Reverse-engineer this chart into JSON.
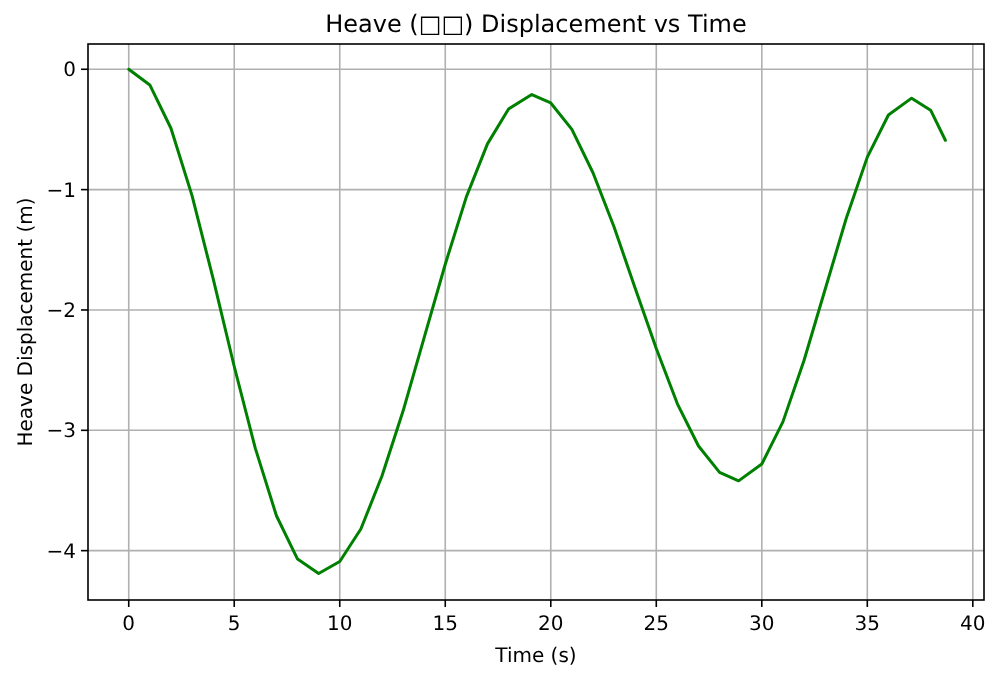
{
  "chart_data": {
    "type": "line",
    "title": "Heave (□□) Displacement vs Time",
    "xlabel": "Time (s)",
    "ylabel": "Heave Displacement (m)",
    "x": [
      0,
      1,
      2,
      3,
      4,
      5,
      6,
      7,
      8,
      9,
      10,
      11,
      12,
      13,
      14,
      15,
      16,
      17,
      18,
      19.1,
      20,
      21,
      22,
      23,
      24,
      25,
      26,
      27,
      28,
      28.9,
      30,
      31,
      32,
      33,
      34,
      35,
      36,
      37.1,
      38,
      38.7
    ],
    "series": [
      {
        "color": "#008000",
        "values": [
          0,
          -0.13,
          -0.49,
          -1.05,
          -1.74,
          -2.47,
          -3.15,
          -3.71,
          -4.07,
          -4.19,
          -4.09,
          -3.82,
          -3.38,
          -2.84,
          -2.23,
          -1.62,
          -1.06,
          -0.62,
          -0.33,
          -0.21,
          -0.28,
          -0.5,
          -0.86,
          -1.31,
          -1.82,
          -2.32,
          -2.78,
          -3.13,
          -3.35,
          -3.42,
          -3.28,
          -2.93,
          -2.42,
          -1.83,
          -1.24,
          -0.73,
          -0.38,
          -0.24,
          -0.34,
          -0.59
        ]
      }
    ],
    "xlim": [
      -1.93,
      40.53
    ],
    "ylim": [
      -4.41,
      0.21
    ],
    "xticks": [
      0,
      5,
      10,
      15,
      20,
      25,
      30,
      35,
      40
    ],
    "yticks": [
      0,
      -1,
      -2,
      -3,
      -4
    ],
    "grid": true
  }
}
